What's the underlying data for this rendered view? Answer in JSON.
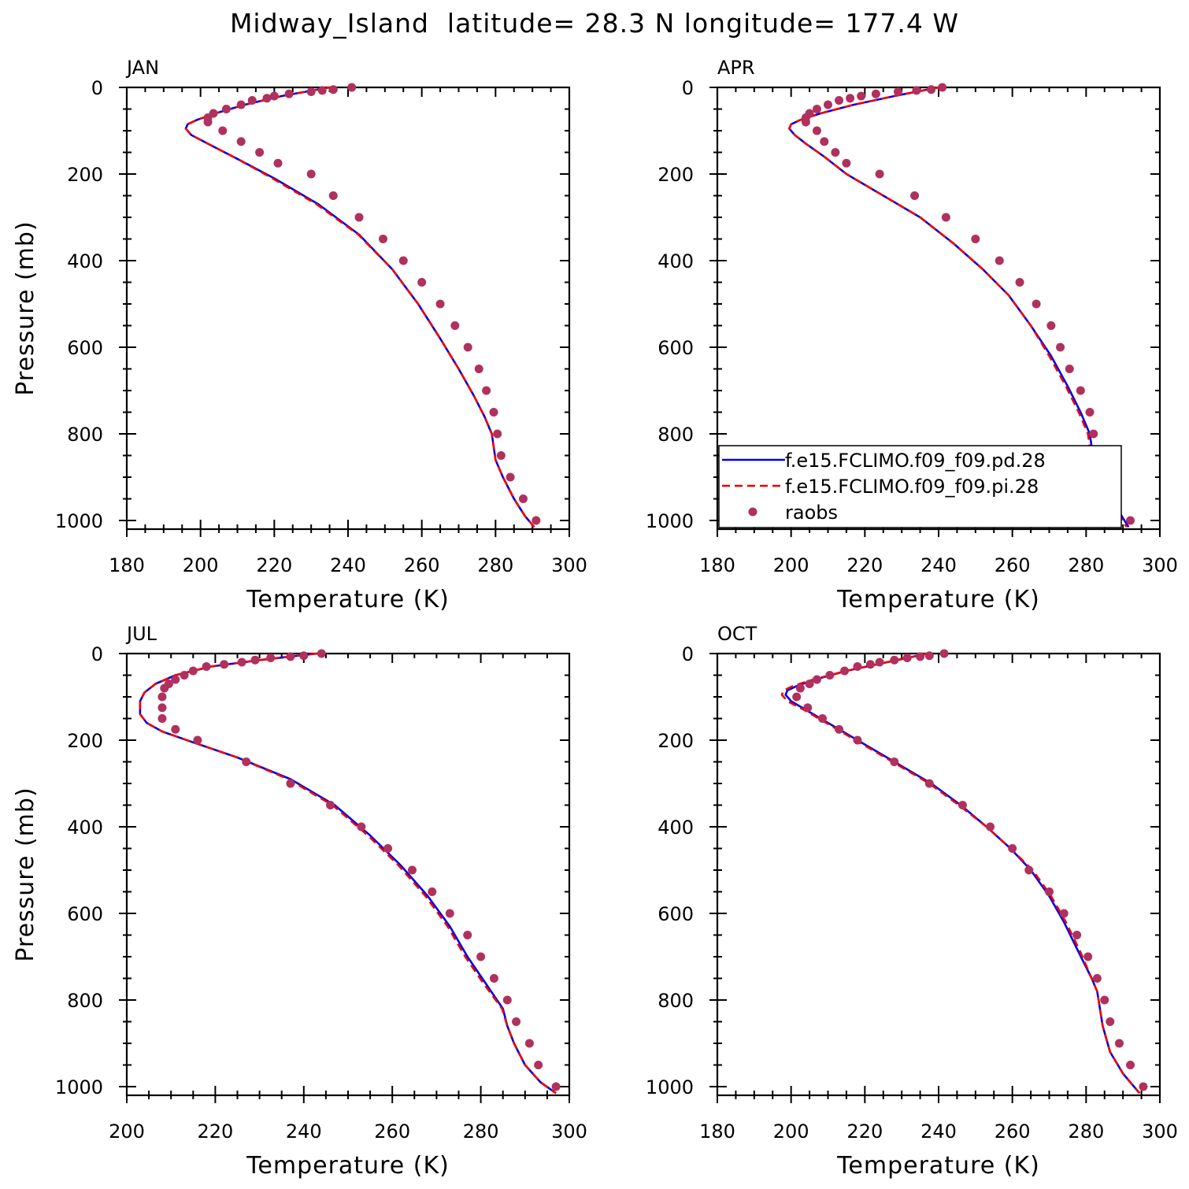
{
  "figure": {
    "title": "Midway_Island  latitude= 28.3 N longitude= 177.4 W"
  },
  "colors": {
    "pd": "#0000ee",
    "pi": "#ee0000",
    "raobs": "#b0305e",
    "axis": "#000000"
  },
  "legend": {
    "panel": "APR",
    "placement": "bottom-left",
    "entries": [
      {
        "label": "f.e15.FCLIMO.f09_f09.pd.28",
        "style": "solid",
        "color": "#0000ee"
      },
      {
        "label": "f.e15.FCLIMO.f09_f09.pi.28",
        "style": "dashed",
        "color": "#ee0000"
      },
      {
        "label": "raobs",
        "style": "marker",
        "color": "#b0305e"
      }
    ]
  },
  "chart_data": [
    {
      "type": "line",
      "panel_label": "JAN",
      "xlabel": "Temperature (K)",
      "ylabel": "Pressure (mb)",
      "xlim": [
        180,
        300
      ],
      "ylim": [
        1020,
        0
      ],
      "xticks": [
        180,
        200,
        220,
        240,
        260,
        280,
        300
      ],
      "yticks": [
        0,
        200,
        400,
        600,
        800,
        1000
      ],
      "series": [
        {
          "name": "f.e15.FCLIMO.f09_f09.pd.28",
          "style": "solid",
          "x": [
            235.0,
            222.0,
            212.0,
            204.0,
            199.0,
            196.5,
            196.0,
            197.5,
            202.0,
            210.0,
            220.0,
            232.0,
            243.0,
            252.0,
            259.0,
            265.0,
            270.0,
            274.0,
            277.0,
            279.0,
            279.5,
            280.0,
            282.0,
            285.0,
            288.0,
            290.5
          ],
          "y": [
            0,
            20,
            40,
            60,
            75,
            85,
            95,
            110,
            130,
            165,
            210,
            270,
            340,
            420,
            500,
            580,
            650,
            710,
            760,
            800,
            830,
            860,
            900,
            950,
            990,
            1015
          ]
        },
        {
          "name": "f.e15.FCLIMO.f09_f09.pi.28",
          "style": "dashed",
          "x": [
            235.0,
            222.0,
            212.0,
            204.0,
            199.0,
            196.5,
            196.0,
            197.5,
            202.0,
            210.0,
            219.5,
            231.5,
            242.8,
            252.0,
            259.0,
            265.0,
            270.0,
            274.0,
            277.0,
            279.0,
            279.5,
            280.0,
            282.0,
            285.0,
            288.0,
            290.5
          ],
          "y": [
            0,
            20,
            40,
            60,
            75,
            85,
            95,
            110,
            130,
            165,
            210,
            270,
            340,
            420,
            500,
            580,
            650,
            710,
            760,
            800,
            830,
            860,
            900,
            950,
            990,
            1015
          ]
        },
        {
          "name": "raobs",
          "style": "markers",
          "x": [
            241,
            236,
            233,
            230,
            224,
            220,
            218,
            214,
            211,
            207,
            203.5,
            202,
            202,
            206,
            211,
            216,
            221,
            230,
            236,
            243,
            249.5,
            255,
            260,
            265,
            269,
            272.5,
            275.5,
            277.5,
            279.5,
            280.5,
            281.5,
            284,
            287.5,
            291
          ],
          "y": [
            0,
            5,
            7,
            10,
            15,
            20,
            25,
            30,
            40,
            50,
            60,
            70,
            80,
            100,
            125,
            150,
            175,
            200,
            250,
            300,
            350,
            400,
            450,
            500,
            550,
            600,
            650,
            700,
            750,
            800,
            850,
            900,
            950,
            1000
          ]
        }
      ]
    },
    {
      "type": "line",
      "panel_label": "APR",
      "xlabel": "Temperature (K)",
      "ylabel": "Pressure (mb)",
      "xlim": [
        180,
        300
      ],
      "ylim": [
        1020,
        0
      ],
      "xticks": [
        180,
        200,
        220,
        240,
        260,
        280,
        300
      ],
      "yticks": [
        0,
        200,
        400,
        600,
        800,
        1000
      ],
      "series": [
        {
          "name": "f.e15.FCLIMO.f09_f09.pd.28",
          "style": "solid",
          "x": [
            240.0,
            228.0,
            217.0,
            208.0,
            202.5,
            200.0,
            199.5,
            201.0,
            204.0,
            209.0,
            215.0,
            225.0,
            235.0,
            244.0,
            252.0,
            259.0,
            265.0,
            270.5,
            275.0,
            278.5,
            281.0,
            281.5,
            282.0,
            284.0,
            287.5,
            291.5
          ],
          "y": [
            0,
            20,
            40,
            60,
            75,
            85,
            95,
            110,
            130,
            160,
            200,
            250,
            300,
            360,
            420,
            480,
            550,
            620,
            690,
            750,
            800,
            830,
            860,
            900,
            960,
            1015
          ]
        },
        {
          "name": "f.e15.FCLIMO.f09_f09.pi.28",
          "style": "dashed",
          "x": [
            240.0,
            228.0,
            217.0,
            208.0,
            202.5,
            200.0,
            199.5,
            201.0,
            204.0,
            209.0,
            215.0,
            225.0,
            235.0,
            244.0,
            252.0,
            259.0,
            265.0,
            270.0,
            274.5,
            278.0,
            280.5,
            281.0,
            281.5,
            283.5,
            287.0,
            291.0
          ],
          "y": [
            0,
            20,
            40,
            60,
            75,
            85,
            95,
            110,
            130,
            160,
            200,
            250,
            300,
            360,
            420,
            480,
            550,
            620,
            690,
            750,
            800,
            830,
            860,
            900,
            960,
            1015
          ]
        },
        {
          "name": "raobs",
          "style": "markers",
          "x": [
            241,
            238,
            234,
            229,
            223,
            219,
            216,
            213,
            210,
            207,
            205,
            204,
            204,
            207,
            209,
            212,
            215,
            224,
            233.5,
            242,
            250,
            256.5,
            262,
            266.5,
            270.5,
            273,
            275.5,
            278.5,
            281,
            282,
            283.5,
            285,
            287.5,
            292
          ],
          "y": [
            0,
            5,
            7,
            10,
            15,
            20,
            25,
            30,
            40,
            50,
            60,
            70,
            80,
            100,
            125,
            150,
            175,
            200,
            250,
            300,
            350,
            400,
            450,
            500,
            550,
            600,
            650,
            700,
            750,
            800,
            850,
            900,
            950,
            1000
          ]
        }
      ]
    },
    {
      "type": "line",
      "panel_label": "JUL",
      "xlabel": "Temperature (K)",
      "ylabel": "Pressure (mb)",
      "xlim": [
        200,
        300
      ],
      "ylim": [
        1020,
        0
      ],
      "xticks": [
        200,
        220,
        240,
        260,
        280,
        300
      ],
      "yticks": [
        0,
        200,
        400,
        600,
        800,
        1000
      ],
      "series": [
        {
          "name": "f.e15.FCLIMO.f09_f09.pd.28",
          "style": "solid",
          "x": [
            243.0,
            230.0,
            219.0,
            211.0,
            206.5,
            204.0,
            203.0,
            203.0,
            204.5,
            208.0,
            215.0,
            225.0,
            237.0,
            247.0,
            255.0,
            262.0,
            268.0,
            273.0,
            277.0,
            281.0,
            285.0,
            286.0,
            287.5,
            290.0,
            293.5,
            297.0
          ],
          "y": [
            0,
            15,
            30,
            50,
            70,
            90,
            110,
            140,
            160,
            180,
            205,
            240,
            290,
            350,
            420,
            490,
            560,
            630,
            700,
            760,
            820,
            860,
            900,
            950,
            990,
            1015
          ]
        },
        {
          "name": "f.e15.FCLIMO.f09_f09.pi.28",
          "style": "dashed",
          "x": [
            243.0,
            230.0,
            219.0,
            211.0,
            206.5,
            204.0,
            203.0,
            203.0,
            204.5,
            208.0,
            215.0,
            225.0,
            236.5,
            246.5,
            254.5,
            261.5,
            267.5,
            272.5,
            276.5,
            280.5,
            284.8,
            286.0,
            287.5,
            290.0,
            293.5,
            297.0
          ],
          "y": [
            0,
            15,
            30,
            50,
            70,
            90,
            110,
            140,
            160,
            180,
            205,
            240,
            290,
            350,
            420,
            490,
            560,
            630,
            700,
            760,
            820,
            860,
            900,
            950,
            990,
            1015
          ]
        },
        {
          "name": "raobs",
          "style": "markers",
          "x": [
            244,
            240,
            237,
            232.5,
            229,
            226,
            222,
            218,
            215,
            213,
            211,
            209.5,
            208.5,
            208,
            208,
            208,
            211,
            216,
            227,
            237,
            246,
            253,
            259,
            264.5,
            269,
            273,
            277,
            280,
            283,
            286,
            288,
            291,
            293,
            297
          ],
          "y": [
            0,
            5,
            7,
            10,
            15,
            20,
            25,
            30,
            40,
            50,
            60,
            70,
            80,
            100,
            125,
            150,
            175,
            200,
            250,
            300,
            350,
            400,
            450,
            500,
            550,
            600,
            650,
            700,
            750,
            800,
            850,
            900,
            950,
            1000
          ]
        }
      ]
    },
    {
      "type": "line",
      "panel_label": "OCT",
      "xlabel": "Temperature (K)",
      "ylabel": "Pressure (mb)",
      "xlim": [
        180,
        300
      ],
      "ylim": [
        1020,
        0
      ],
      "xticks": [
        180,
        200,
        220,
        240,
        260,
        280,
        300
      ],
      "yticks": [
        0,
        200,
        400,
        600,
        800,
        1000
      ],
      "series": [
        {
          "name": "f.e15.FCLIMO.f09_f09.pd.28",
          "style": "solid",
          "x": [
            237.0,
            226.0,
            215.0,
            206.5,
            201.5,
            199.0,
            198.5,
            200.0,
            204.0,
            210.0,
            218.0,
            228.0,
            238.0,
            246.0,
            253.0,
            259.5,
            265.0,
            270.0,
            274.0,
            278.0,
            281.5,
            283.0,
            284.5,
            286.5,
            290.0,
            294.5
          ],
          "y": [
            0,
            20,
            40,
            60,
            75,
            85,
            95,
            110,
            130,
            160,
            200,
            250,
            300,
            350,
            400,
            450,
            500,
            560,
            620,
            690,
            750,
            780,
            860,
            920,
            970,
            1015
          ]
        },
        {
          "name": "f.e15.FCLIMO.f09_f09.pi.28",
          "style": "dashed",
          "x": [
            237.0,
            226.0,
            215.0,
            206.0,
            200.5,
            198.0,
            197.5,
            199.0,
            203.5,
            209.5,
            217.5,
            227.5,
            237.5,
            245.5,
            253.0,
            259.5,
            265.5,
            270.5,
            274.5,
            278.5,
            281.5,
            283.0,
            284.5,
            286.5,
            290.0,
            294.5
          ],
          "y": [
            0,
            20,
            40,
            60,
            75,
            85,
            95,
            110,
            130,
            160,
            200,
            250,
            300,
            350,
            400,
            450,
            500,
            560,
            620,
            690,
            750,
            780,
            860,
            920,
            970,
            1015
          ]
        },
        {
          "name": "raobs",
          "style": "markers",
          "x": [
            241.5,
            237.5,
            235,
            231.5,
            228,
            224,
            221.5,
            218,
            214.5,
            210.5,
            207,
            205,
            202.5,
            201.5,
            204.5,
            208.5,
            213,
            218,
            228,
            237.5,
            246.5,
            254,
            260,
            264.5,
            270,
            274,
            277.5,
            280.5,
            283,
            285,
            286.5,
            289,
            292,
            295.5
          ],
          "y": [
            0,
            5,
            7,
            10,
            15,
            20,
            25,
            30,
            40,
            50,
            60,
            70,
            80,
            100,
            125,
            150,
            175,
            200,
            250,
            300,
            350,
            400,
            450,
            500,
            550,
            600,
            650,
            700,
            750,
            800,
            850,
            900,
            950,
            1000
          ]
        }
      ]
    }
  ]
}
